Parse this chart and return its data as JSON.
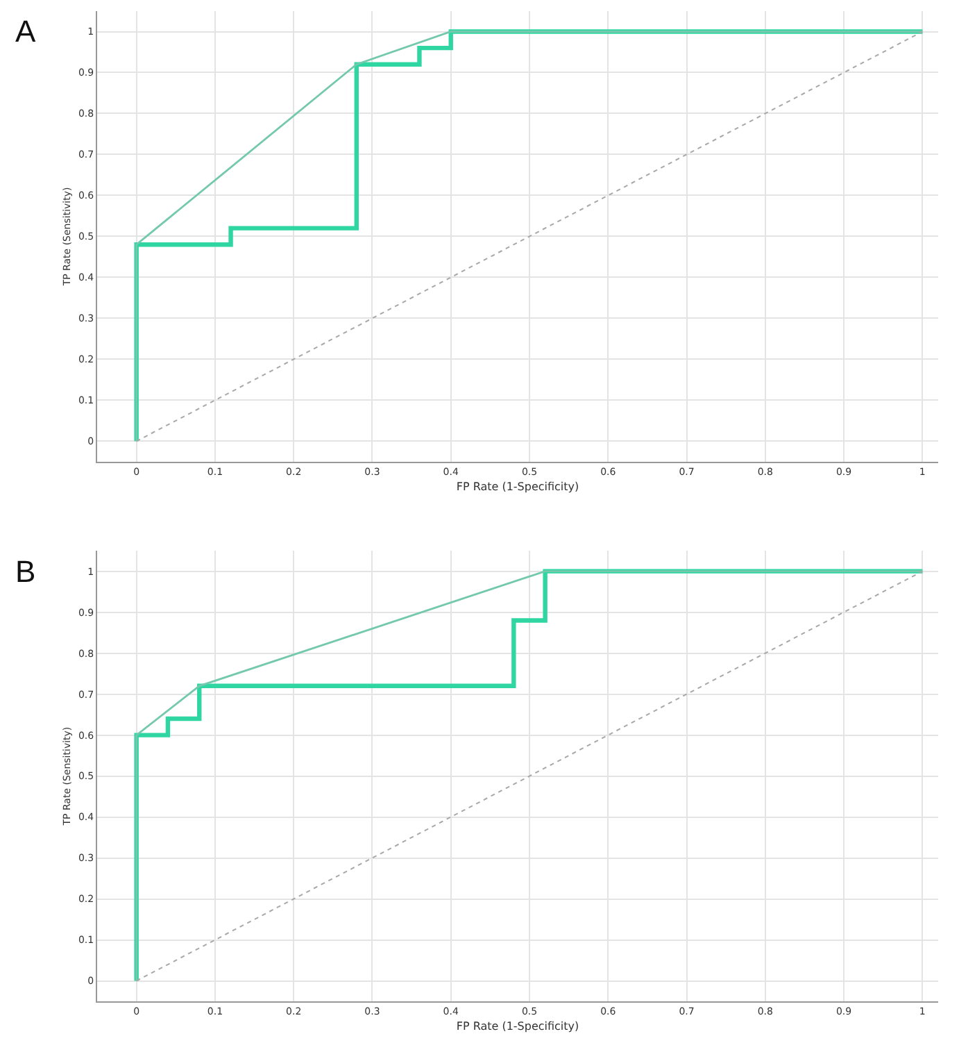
{
  "chart_data": [
    {
      "type": "line",
      "title": "A",
      "xlabel": "FP Rate (1-Specificity)",
      "ylabel": "TP Rate (Sensitivity)",
      "xlim": [
        -0.05,
        1.02
      ],
      "ylim": [
        -0.05,
        1.05
      ],
      "xticks": [
        0,
        0.1,
        0.2,
        0.3,
        0.4,
        0.5,
        0.6,
        0.7,
        0.8,
        0.9,
        1
      ],
      "yticks": [
        0,
        0.1,
        0.2,
        0.3,
        0.4,
        0.5,
        0.6,
        0.7,
        0.8,
        0.9,
        1
      ],
      "grid": true,
      "marker": "none",
      "series": [
        {
          "color": "#2fd6a2",
          "line_style": "solid",
          "x": [
            0,
            0,
            0.12,
            0.12,
            0.28,
            0.28,
            0.36,
            0.36,
            0.4,
            0.4,
            1
          ],
          "values": [
            0,
            0.48,
            0.48,
            0.52,
            0.52,
            0.92,
            0.92,
            0.96,
            0.96,
            1,
            1
          ]
        },
        {
          "color": "#74c9ad",
          "line_style": "solid",
          "x": [
            0,
            0,
            0.28,
            0.4,
            1
          ],
          "values": [
            0,
            0.48,
            0.92,
            1,
            1
          ]
        },
        {
          "color": "#a8a8a8",
          "line_style": "dotted",
          "x": [
            0,
            1
          ],
          "values": [
            0,
            1
          ]
        }
      ]
    },
    {
      "type": "line",
      "title": "B",
      "xlabel": "FP Rate (1-Specificity)",
      "ylabel": "TP Rate (Sensitivity)",
      "xlim": [
        -0.05,
        1.02
      ],
      "ylim": [
        -0.05,
        1.05
      ],
      "xticks": [
        0,
        0.1,
        0.2,
        0.3,
        0.4,
        0.5,
        0.6,
        0.7,
        0.8,
        0.9,
        1
      ],
      "yticks": [
        0,
        0.1,
        0.2,
        0.3,
        0.4,
        0.5,
        0.6,
        0.7,
        0.8,
        0.9,
        1
      ],
      "grid": true,
      "marker": "none",
      "series": [
        {
          "color": "#2fd6a2",
          "line_style": "solid",
          "x": [
            0,
            0,
            0.04,
            0.04,
            0.08,
            0.08,
            0.48,
            0.48,
            0.52,
            0.52,
            1
          ],
          "values": [
            0,
            0.6,
            0.6,
            0.64,
            0.64,
            0.72,
            0.72,
            0.88,
            0.88,
            1,
            1
          ]
        },
        {
          "color": "#74c9ad",
          "line_style": "solid",
          "x": [
            0,
            0,
            0.08,
            0.52,
            1
          ],
          "values": [
            0,
            0.6,
            0.72,
            1,
            1
          ]
        },
        {
          "color": "#a8a8a8",
          "line_style": "dotted",
          "x": [
            0,
            1
          ],
          "values": [
            0,
            1
          ]
        }
      ]
    }
  ]
}
